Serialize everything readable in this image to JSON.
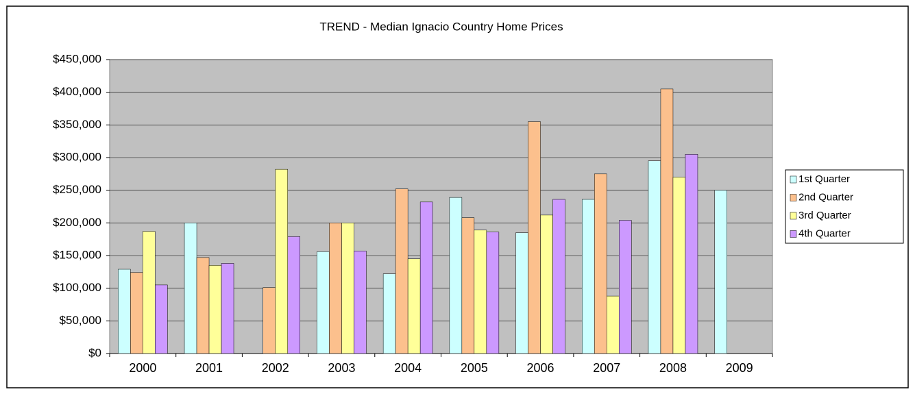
{
  "chart_data": {
    "type": "bar",
    "title": "TREND - Median Ignacio Country Home Prices",
    "categories": [
      "2000",
      "2001",
      "2002",
      "2003",
      "2004",
      "2005",
      "2006",
      "2007",
      "2008",
      "2009"
    ],
    "series": [
      {
        "name": "1st Quarter",
        "color": "#ccffff",
        "values": [
          129000,
          200000,
          null,
          156000,
          122000,
          239000,
          185000,
          236000,
          295000,
          250000
        ]
      },
      {
        "name": "2nd Quarter",
        "color": "#fcc08d",
        "values": [
          124000,
          147000,
          101000,
          200000,
          252000,
          208000,
          355000,
          275000,
          405000,
          null
        ]
      },
      {
        "name": "3rd Quarter",
        "color": "#ffff99",
        "values": [
          187000,
          135000,
          282000,
          200000,
          145000,
          189000,
          212000,
          88000,
          270000,
          null
        ]
      },
      {
        "name": "4th Quarter",
        "color": "#cc99ff",
        "values": [
          105000,
          138000,
          179000,
          157000,
          232000,
          186000,
          236000,
          204000,
          305000,
          null
        ]
      }
    ],
    "ylim": [
      0,
      450000
    ],
    "yticks": [
      {
        "value": 0,
        "label": "$0"
      },
      {
        "value": 50000,
        "label": "$50,000"
      },
      {
        "value": 100000,
        "label": "$100,000"
      },
      {
        "value": 150000,
        "label": "$150,000"
      },
      {
        "value": 200000,
        "label": "$200,000"
      },
      {
        "value": 250000,
        "label": "$250,000"
      },
      {
        "value": 300000,
        "label": "$300,000"
      },
      {
        "value": 350000,
        "label": "$350,000"
      },
      {
        "value": 400000,
        "label": "$400,000"
      },
      {
        "value": 450000,
        "label": "$450,000"
      }
    ],
    "grid": true,
    "legend": "right",
    "plot_background": "#c0c0c0"
  }
}
